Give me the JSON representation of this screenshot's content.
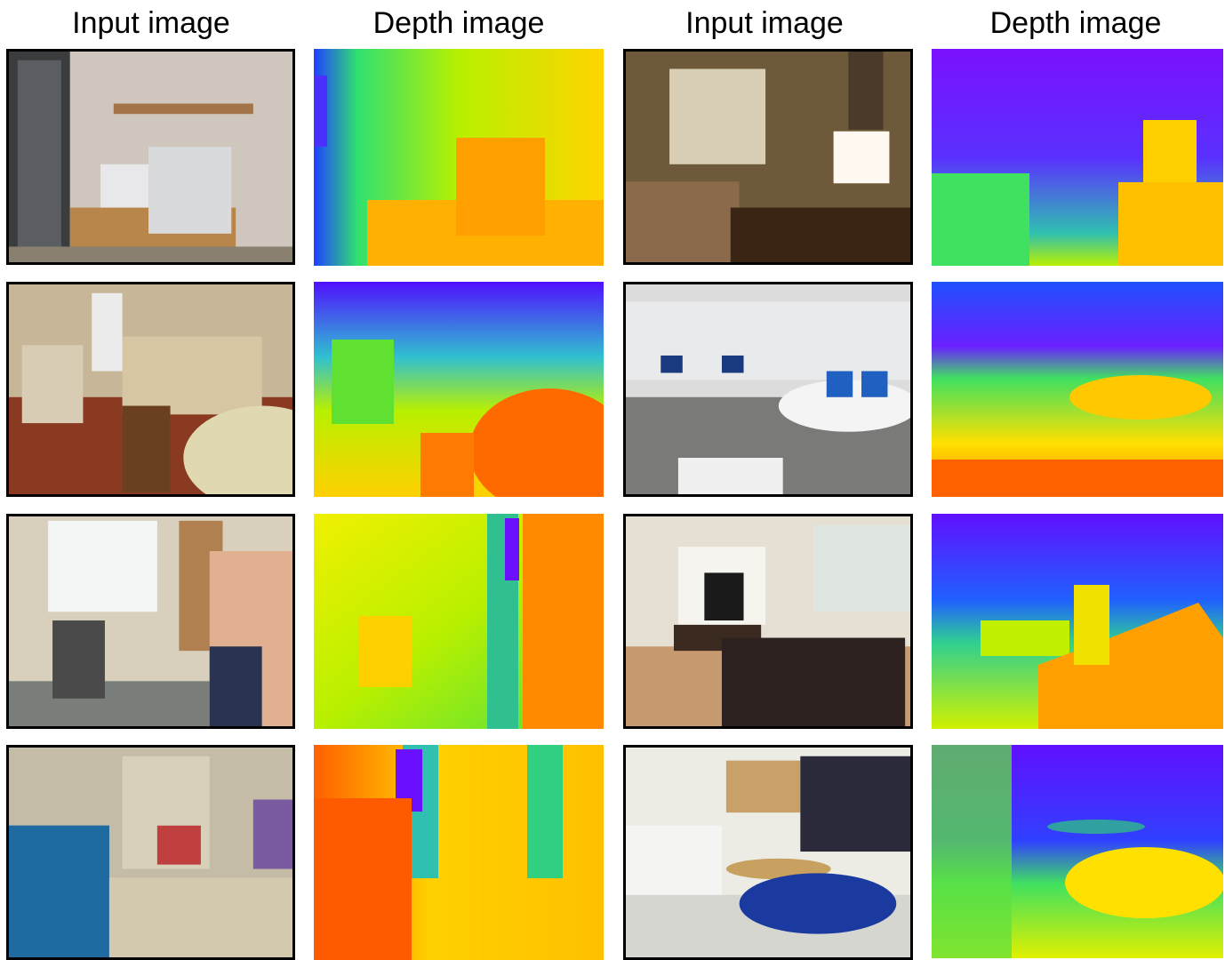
{
  "headers": [
    "Input image",
    "Depth image",
    "Input image",
    "Depth image"
  ],
  "rows": [
    {
      "left_input": "office-printer-scene",
      "left_depth": "office-printer-depth",
      "right_input": "bedroom-lamp-scene",
      "right_depth": "bedroom-lamp-depth"
    },
    {
      "left_input": "kitchen-table-scene",
      "left_depth": "kitchen-table-depth",
      "right_input": "computer-lab-scene",
      "right_depth": "computer-lab-depth"
    },
    {
      "left_input": "whiteboard-man-scene",
      "left_depth": "whiteboard-man-depth",
      "right_input": "living-room-fireplace-scene",
      "right_depth": "living-room-fireplace-depth"
    },
    {
      "left_input": "bookshelf-room-scene",
      "left_depth": "bookshelf-room-depth",
      "right_input": "classroom-scene",
      "right_depth": "classroom-depth"
    }
  ],
  "colors": {
    "near": "#ff5a00",
    "mid": "#ffd400",
    "far": "#6a00ff"
  }
}
